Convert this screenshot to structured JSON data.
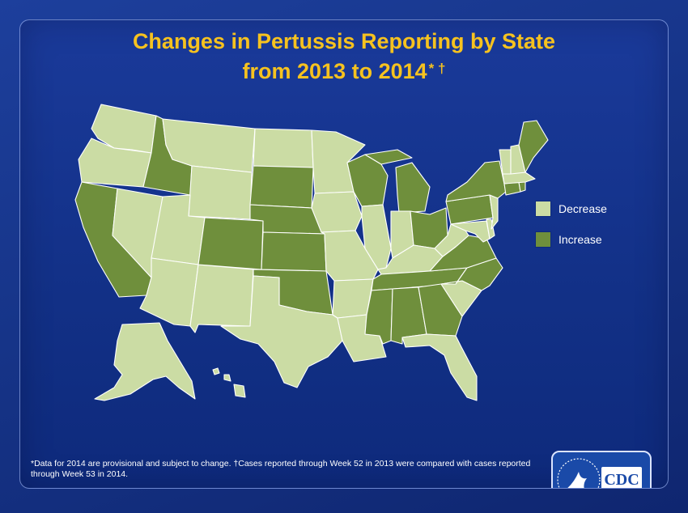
{
  "title": {
    "line1": "Changes in Pertussis Reporting by State",
    "line2": "from 2013 to 2014",
    "marks": "* †"
  },
  "legend": {
    "decrease": {
      "label": "Decrease",
      "color": "#cbdca4"
    },
    "increase": {
      "label": "Increase",
      "color": "#6f8f3c"
    }
  },
  "states": {
    "WA": "Decrease",
    "OR": "Decrease",
    "CA": "Increase",
    "NV": "Decrease",
    "ID": "Increase",
    "MT": "Decrease",
    "WY": "Decrease",
    "UT": "Decrease",
    "AZ": "Decrease",
    "NM": "Decrease",
    "CO": "Increase",
    "ND": "Decrease",
    "SD": "Increase",
    "NE": "Increase",
    "KS": "Increase",
    "OK": "Increase",
    "TX": "Decrease",
    "MN": "Decrease",
    "IA": "Decrease",
    "MO": "Decrease",
    "AR": "Decrease",
    "LA": "Decrease",
    "WI": "Increase",
    "IL": "Decrease",
    "MI": "Increase",
    "IN": "Decrease",
    "OH": "Increase",
    "KY": "Decrease",
    "TN": "Increase",
    "MS": "Increase",
    "AL": "Increase",
    "GA": "Increase",
    "FL": "Decrease",
    "SC": "Decrease",
    "NC": "Increase",
    "VA": "Increase",
    "WV": "Decrease",
    "MD": "Decrease",
    "DE": "Decrease",
    "NJ": "Decrease",
    "PA": "Increase",
    "NY": "Increase",
    "CT": "Increase",
    "RI": "Increase",
    "MA": "Decrease",
    "VT": "Decrease",
    "NH": "Decrease",
    "ME": "Increase",
    "AK": "Decrease",
    "HI": "Decrease"
  },
  "footnote": "*Data for 2014 are provisional and subject to change. †Cases reported through Week 52 in 2013  were compared with cases reported through Week 53 in 2014.",
  "logo": {
    "text": "CDC"
  }
}
